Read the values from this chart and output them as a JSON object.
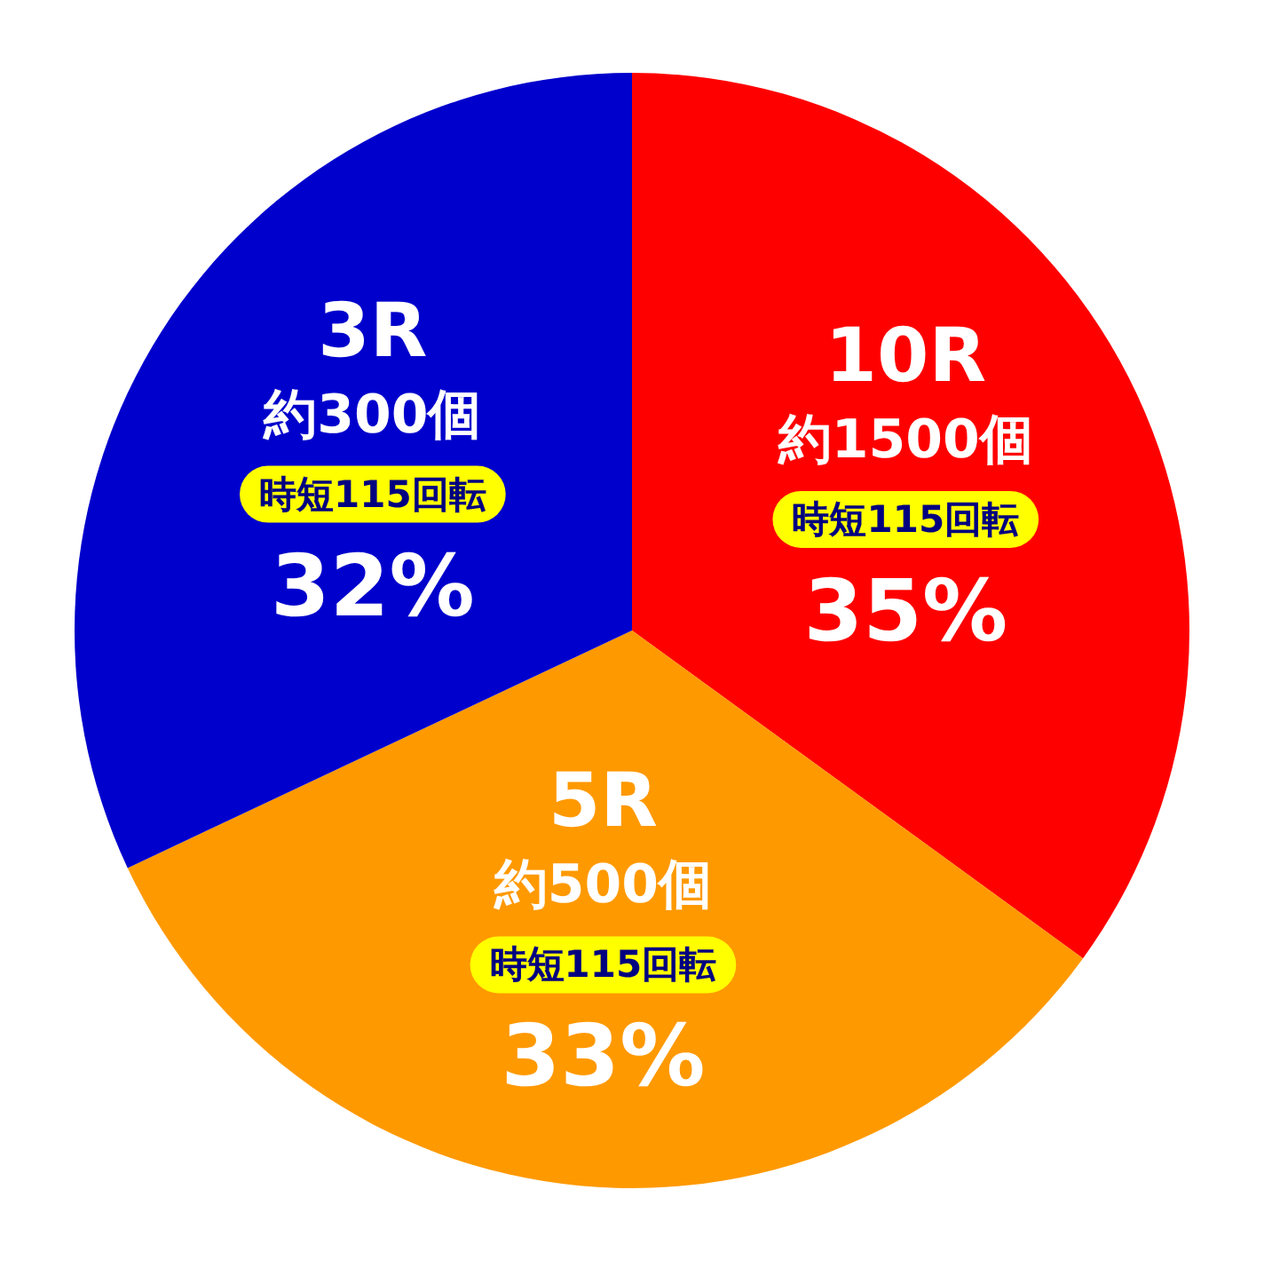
{
  "chart_data": {
    "type": "pie",
    "categories": [
      "10R",
      "5R",
      "3R"
    ],
    "values": [
      35,
      33,
      32
    ],
    "colors": [
      "#ff0000",
      "#ff9900",
      "#0000cc"
    ],
    "value_labels": [
      "35%",
      "33%",
      "32%"
    ],
    "annotations": [
      {
        "text": "約1500個",
        "x": "10R"
      },
      {
        "text": "時短115回転",
        "x": "10R"
      },
      {
        "text": "約500個",
        "x": "5R"
      },
      {
        "text": "時短115回転",
        "x": "5R"
      },
      {
        "text": "約300個",
        "x": "3R"
      },
      {
        "text": "時短115回転",
        "x": "3R"
      }
    ]
  }
}
